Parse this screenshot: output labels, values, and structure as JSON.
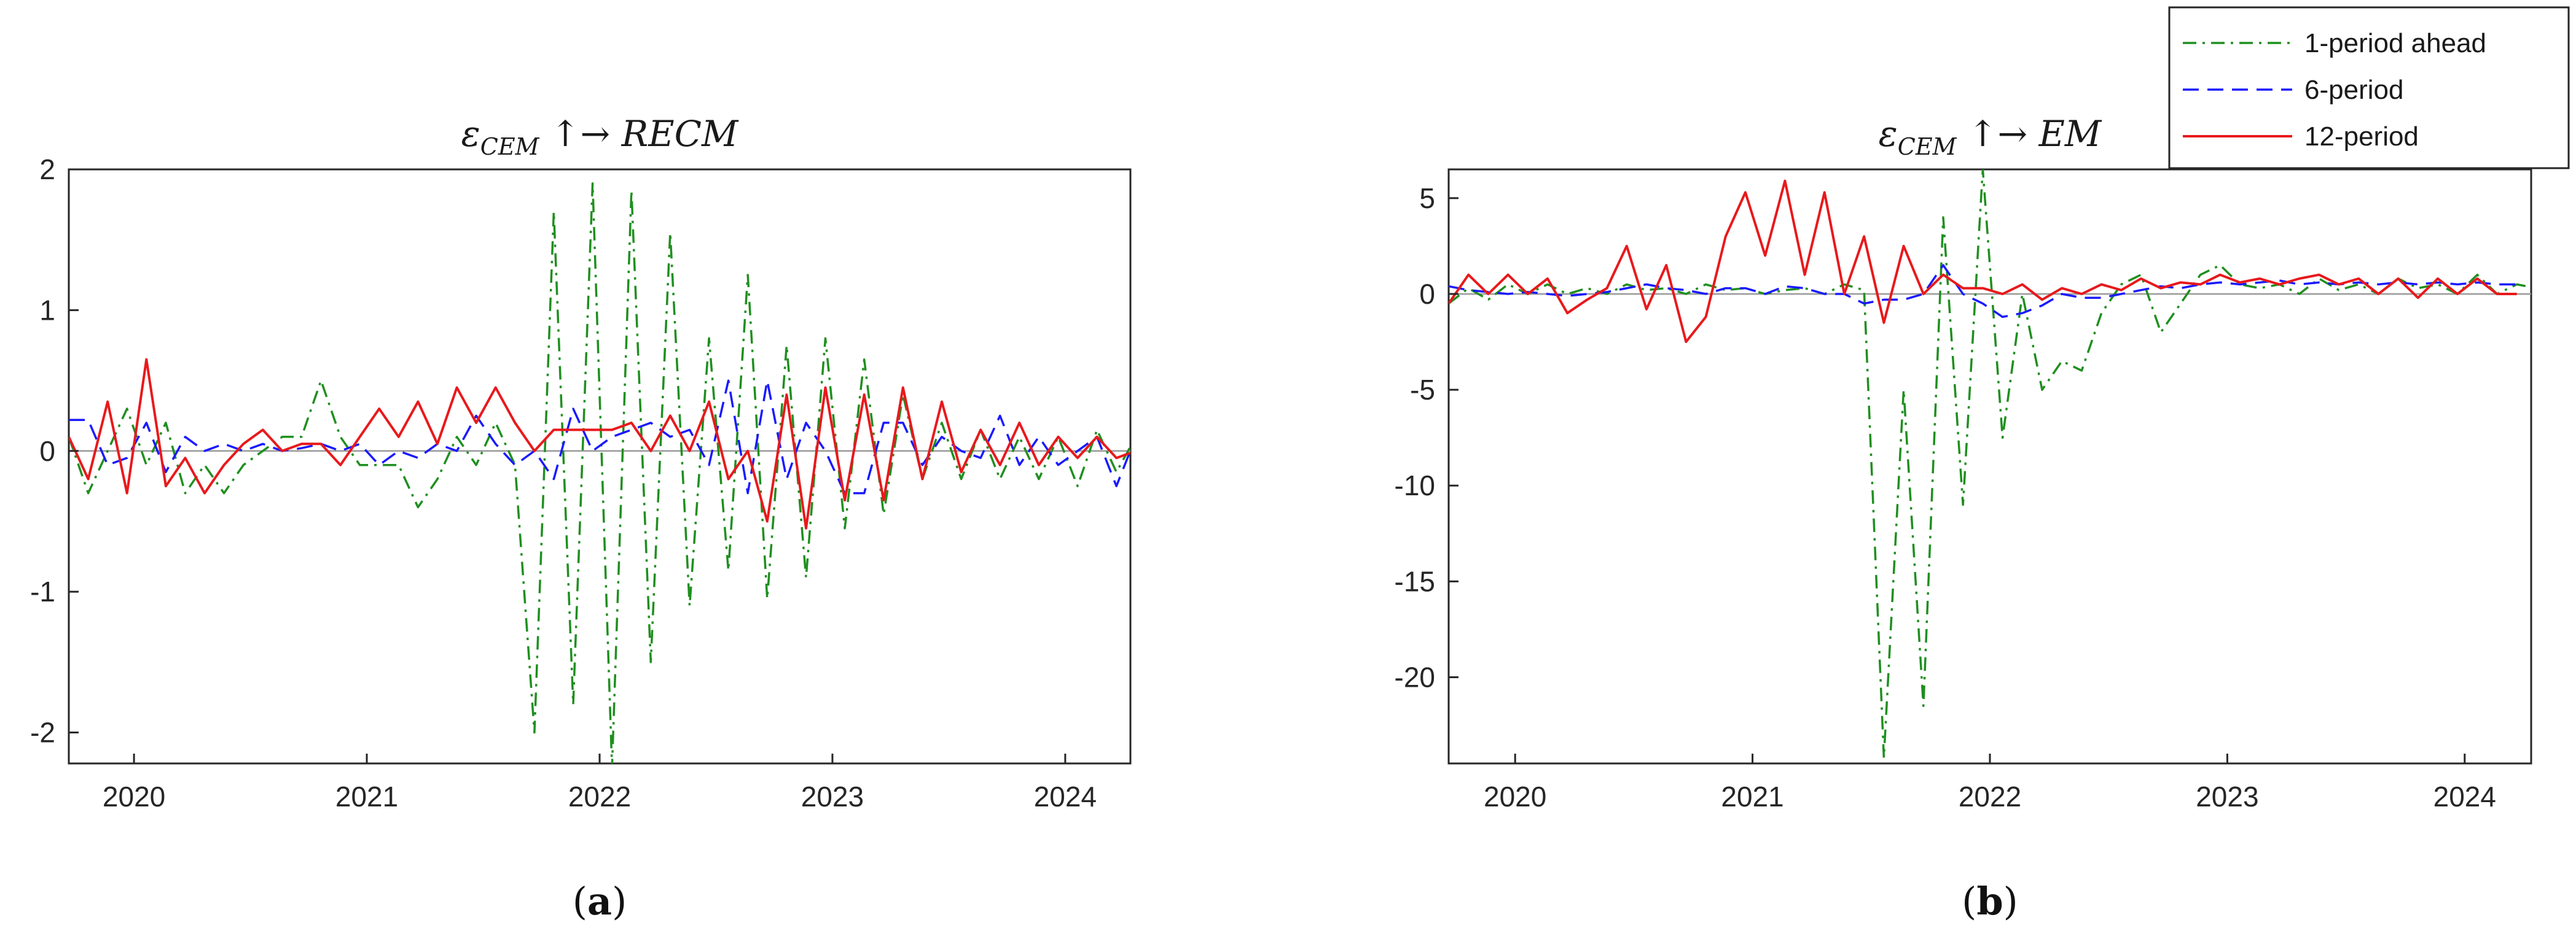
{
  "chart_data": [
    {
      "type": "line",
      "panel_label": "(a)",
      "title": "εCEM ↑→ RECM",
      "title_parts": {
        "symbol": "ε",
        "subscript": "CEM",
        "arrows": " ↑→ ",
        "target": "RECM"
      },
      "xlabel": "",
      "ylabel": "",
      "xlim": [
        2019.72,
        2024.28
      ],
      "ylim": [
        -2.22,
        2.0
      ],
      "x_ticks": [
        2020,
        2021,
        2022,
        2023,
        2024
      ],
      "x_tick_labels": [
        "2020",
        "2021",
        "2022",
        "2023",
        "2024"
      ],
      "y_ticks": [
        -2,
        -1,
        0,
        1,
        2
      ],
      "y_tick_labels": [
        "-2",
        "-1",
        "0",
        "1",
        "2"
      ],
      "x_start": 2019.72,
      "x_step": 0.08333,
      "zero_line": true,
      "series": [
        {
          "name": "1-period ahead",
          "color": "#1f8f1f",
          "style": "dashdot",
          "values": [
            0.1,
            -0.3,
            0.0,
            0.3,
            -0.1,
            0.2,
            -0.3,
            -0.1,
            -0.3,
            -0.1,
            0.0,
            0.1,
            0.1,
            0.5,
            0.1,
            -0.1,
            -0.1,
            -0.1,
            -0.4,
            -0.2,
            0.1,
            -0.1,
            0.2,
            -0.1,
            -2.0,
            1.7,
            -1.8,
            1.9,
            -2.25,
            1.85,
            -1.5,
            1.55,
            -1.1,
            0.8,
            -0.85,
            1.25,
            -1.05,
            0.75,
            -0.9,
            0.8,
            -0.55,
            0.65,
            -0.45,
            0.4,
            -0.2,
            0.2,
            -0.2,
            0.15,
            -0.2,
            0.1,
            -0.2,
            0.1,
            -0.25,
            0.15,
            -0.15,
            0.1,
            -0.15,
            0.0,
            0.1,
            -0.35,
            0.1,
            -0.2
          ]
        },
        {
          "name": "6-period",
          "color": "#1a1aff",
          "style": "dashed",
          "values": [
            0.22,
            0.22,
            -0.1,
            -0.05,
            0.2,
            -0.15,
            0.1,
            0.0,
            0.05,
            0.0,
            0.05,
            0.0,
            0.02,
            0.05,
            0.0,
            0.05,
            -0.1,
            0.0,
            -0.05,
            0.05,
            0.0,
            0.25,
            0.05,
            -0.1,
            0.0,
            -0.2,
            0.3,
            0.0,
            0.1,
            0.15,
            0.2,
            0.1,
            0.15,
            -0.1,
            0.5,
            -0.3,
            0.5,
            -0.2,
            0.2,
            0.0,
            -0.3,
            -0.3,
            0.2,
            0.2,
            -0.1,
            0.1,
            0.0,
            -0.05,
            0.25,
            -0.1,
            0.1,
            -0.1,
            0.0,
            0.1,
            -0.25,
            0.1,
            -0.2,
            0.0,
            0.1,
            -0.2,
            0.1,
            -0.1,
            0.15
          ]
        },
        {
          "name": "12-period",
          "color": "#e8191c",
          "style": "solid",
          "values": [
            0.1,
            -0.2,
            0.35,
            -0.3,
            0.65,
            -0.25,
            -0.05,
            -0.3,
            -0.1,
            0.05,
            0.15,
            0.0,
            0.05,
            0.05,
            -0.1,
            0.1,
            0.3,
            0.1,
            0.35,
            0.05,
            0.45,
            0.2,
            0.45,
            0.2,
            0.0,
            0.15,
            0.15,
            0.15,
            0.15,
            0.2,
            0.0,
            0.25,
            0.0,
            0.35,
            -0.2,
            0.0,
            -0.5,
            0.4,
            -0.55,
            0.45,
            -0.35,
            0.4,
            -0.35,
            0.45,
            -0.2,
            0.35,
            -0.15,
            0.15,
            -0.1,
            0.2,
            -0.1,
            0.1,
            -0.05,
            0.1,
            -0.05,
            0.0,
            0.2,
            -0.3,
            0.2,
            -0.25,
            0.15
          ]
        }
      ]
    },
    {
      "type": "line",
      "panel_label": "(b)",
      "title": "εCEM ↑→ EM",
      "title_parts": {
        "symbol": "ε",
        "subscript": "CEM",
        "arrows": " ↑→ ",
        "target": "EM"
      },
      "xlabel": "",
      "ylabel": "",
      "xlim": [
        2019.72,
        2024.28
      ],
      "ylim": [
        -24.5,
        6.5
      ],
      "x_ticks": [
        2020,
        2021,
        2022,
        2023,
        2024
      ],
      "x_tick_labels": [
        "2020",
        "2021",
        "2022",
        "2023",
        "2024"
      ],
      "y_ticks": [
        -20,
        -15,
        -10,
        -5,
        0,
        5
      ],
      "y_tick_labels": [
        "-20",
        "-15",
        "-10",
        "-5",
        "0",
        "5"
      ],
      "x_start": 2019.72,
      "x_step": 0.08333,
      "zero_line": true,
      "legend": {
        "placement": "top-right",
        "entries": [
          "1-period ahead",
          "6-period",
          "12-period"
        ]
      },
      "series": [
        {
          "name": "1-period ahead",
          "color": "#1f8f1f",
          "style": "dashdot",
          "values": [
            -0.5,
            0.3,
            -0.3,
            0.5,
            0.0,
            0.5,
            0.0,
            0.3,
            0.0,
            0.5,
            0.2,
            0.3,
            0.0,
            0.5,
            0.2,
            0.3,
            0.0,
            0.2,
            0.3,
            0.0,
            0.5,
            0.2,
            -24.2,
            -5.0,
            -21.5,
            4.0,
            -11.0,
            6.5,
            -7.5,
            0.0,
            -5.0,
            -3.5,
            -4.0,
            -1.0,
            0.5,
            1.0,
            -2.0,
            -0.5,
            1.0,
            1.5,
            0.5,
            0.3,
            0.5,
            0.0,
            0.8,
            0.2,
            0.5,
            0.0,
            0.8,
            0.3,
            0.5,
            0.0,
            1.0,
            0.0,
            0.5,
            0.3,
            0.3
          ]
        },
        {
          "name": "6-period",
          "color": "#1a1aff",
          "style": "dashed",
          "values": [
            0.4,
            0.2,
            0.1,
            0.0,
            0.1,
            0.0,
            -0.1,
            0.0,
            0.1,
            0.3,
            0.5,
            0.3,
            0.2,
            0.0,
            0.3,
            0.3,
            0.0,
            0.4,
            0.3,
            0.0,
            0.0,
            -0.5,
            -0.3,
            -0.3,
            0.0,
            1.5,
            0.0,
            -0.5,
            -1.2,
            -1.0,
            -0.6,
            0.0,
            -0.2,
            -0.2,
            0.0,
            0.2,
            0.4,
            0.3,
            0.5,
            0.6,
            0.5,
            0.6,
            0.7,
            0.5,
            0.6,
            0.5,
            0.6,
            0.5,
            0.6,
            0.5,
            0.6,
            0.5,
            0.6,
            0.5,
            0.5
          ]
        },
        {
          "name": "12-period",
          "color": "#e8191c",
          "style": "solid",
          "values": [
            -0.5,
            1.0,
            0.0,
            1.0,
            0.0,
            0.8,
            -1.0,
            -0.3,
            0.3,
            2.5,
            -0.8,
            1.5,
            -2.5,
            -1.2,
            3.0,
            5.3,
            2.0,
            5.9,
            1.0,
            5.3,
            0.0,
            3.0,
            -1.5,
            2.5,
            0.0,
            1.0,
            0.3,
            0.3,
            0.0,
            0.5,
            -0.3,
            0.3,
            0.0,
            0.5,
            0.2,
            0.8,
            0.3,
            0.6,
            0.5,
            1.0,
            0.6,
            0.8,
            0.5,
            0.8,
            1.0,
            0.5,
            0.8,
            0.0,
            0.8,
            -0.2,
            0.8,
            0.0,
            0.8,
            0.0,
            0.0
          ]
        }
      ]
    }
  ]
}
